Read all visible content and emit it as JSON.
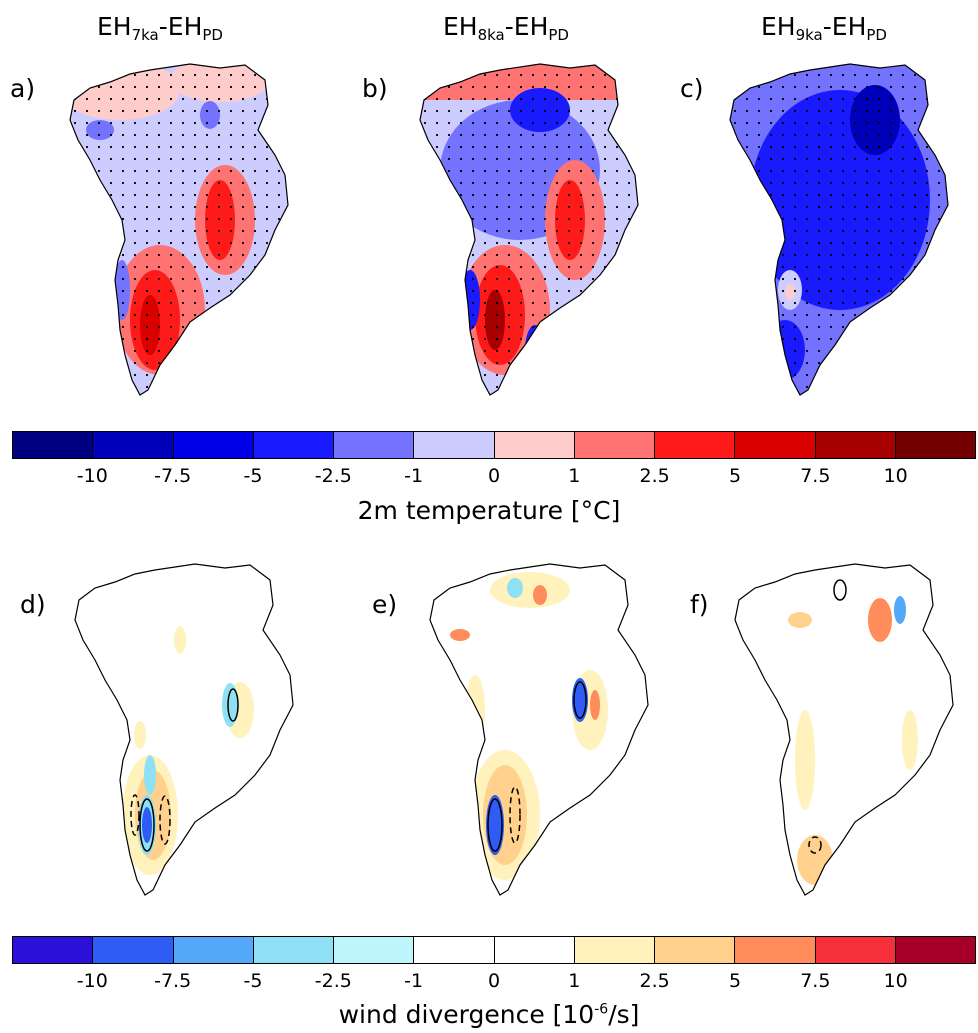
{
  "column_titles": [
    {
      "base": "EH",
      "sub1": "7ka",
      "mid": "-EH",
      "sub2": "PD"
    },
    {
      "base": "EH",
      "sub1": "8ka",
      "mid": "-EH",
      "sub2": "PD"
    },
    {
      "base": "EH",
      "sub1": "9ka",
      "mid": "-EH",
      "sub2": "PD"
    }
  ],
  "panel_labels": [
    "a)",
    "b)",
    "c)",
    "d)",
    "e)",
    "f)"
  ],
  "temperature_colorbar": {
    "title": "2m temperature [°C]",
    "ticks": [
      "-10",
      "-7.5",
      "-5",
      "-2.5",
      "-1",
      "0",
      "1",
      "2.5",
      "5",
      "7.5",
      "10"
    ],
    "colors": [
      "#000080",
      "#0000b8",
      "#0000e6",
      "#1a1aff",
      "#7373ff",
      "#ccccff",
      "#ffcccc",
      "#ff7373",
      "#ff1a1a",
      "#d90000",
      "#a60000",
      "#730000"
    ]
  },
  "divergence_colorbar": {
    "title_main": "wind divergence [10",
    "title_sup": "-6",
    "title_end": "/s]",
    "ticks": [
      "-10",
      "-7.5",
      "-5",
      "-2.5",
      "-1",
      "0",
      "1",
      "2.5",
      "5",
      "7.5",
      "10"
    ],
    "colors": [
      "#2a10d9",
      "#2e5cf5",
      "#54a8f8",
      "#8fe0f5",
      "#bdf5fa",
      "#ffffff",
      "#ffffff",
      "#fff2bd",
      "#ffd18c",
      "#ff8c5a",
      "#f5303a",
      "#a6002a"
    ]
  },
  "chart_data": [
    {
      "type": "heatmap",
      "panel": "a)",
      "title": "EH7ka-EHPD",
      "variable": "2m temperature [°C]",
      "levels": [
        -10,
        -7.5,
        -5,
        -2.5,
        -1,
        0,
        1,
        2.5,
        5,
        7.5,
        10
      ]
    },
    {
      "type": "heatmap",
      "panel": "b)",
      "title": "EH8ka-EHPD",
      "variable": "2m temperature [°C]",
      "levels": [
        -10,
        -7.5,
        -5,
        -2.5,
        -1,
        0,
        1,
        2.5,
        5,
        7.5,
        10
      ]
    },
    {
      "type": "heatmap",
      "panel": "c)",
      "title": "EH9ka-EHPD",
      "variable": "2m temperature [°C]",
      "levels": [
        -10,
        -7.5,
        -5,
        -2.5,
        -1,
        0,
        1,
        2.5,
        5,
        7.5,
        10
      ]
    },
    {
      "type": "heatmap",
      "panel": "d)",
      "variable": "wind divergence [10-6/s]",
      "levels": [
        -10,
        -7.5,
        -5,
        -2.5,
        -1,
        0,
        1,
        2.5,
        5,
        7.5,
        10
      ]
    },
    {
      "type": "heatmap",
      "panel": "e)",
      "variable": "wind divergence [10-6/s]",
      "levels": [
        -10,
        -7.5,
        -5,
        -2.5,
        -1,
        0,
        1,
        2.5,
        5,
        7.5,
        10
      ]
    },
    {
      "type": "heatmap",
      "panel": "f)",
      "variable": "wind divergence [10-6/s]",
      "levels": [
        -10,
        -7.5,
        -5,
        -2.5,
        -1,
        0,
        1,
        2.5,
        5,
        7.5,
        10
      ]
    }
  ]
}
